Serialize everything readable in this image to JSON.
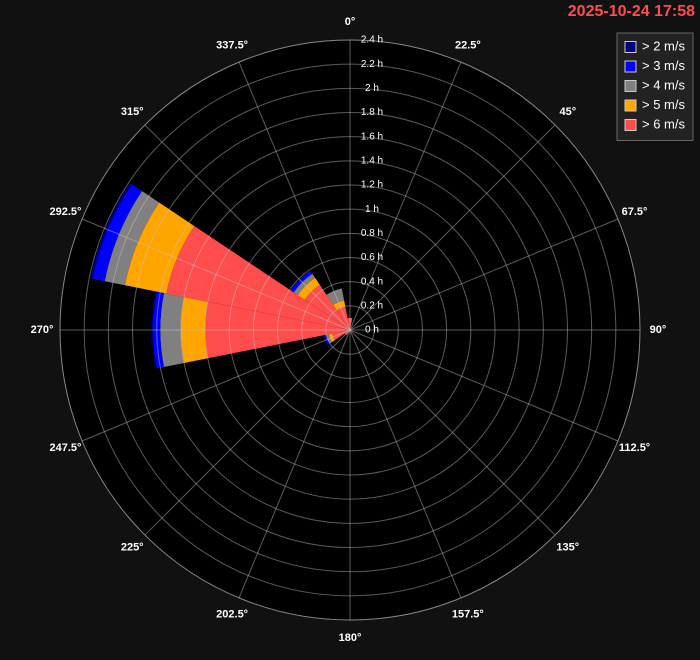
{
  "chart_data": {
    "type": "windrose",
    "timestamp": "2025-10-24 17:58",
    "categories": [
      "0°",
      "22.5°",
      "45°",
      "67.5°",
      "90°",
      "112.5°",
      "135°",
      "157.5°",
      "180°",
      "202.5°",
      "225°",
      "247.5°",
      "270°",
      "292.5°",
      "315°",
      "337.5°"
    ],
    "series": [
      {
        "name": "> 2 m/s",
        "color": "#000080",
        "values": [
          0,
          0,
          0,
          0,
          0,
          0,
          0,
          0,
          0,
          0,
          0,
          0,
          0.01,
          0.02,
          0,
          0
        ]
      },
      {
        "name": "> 3 m/s",
        "color": "#0000ff",
        "values": [
          0,
          0,
          0,
          0,
          0,
          0,
          0,
          0,
          0,
          0,
          0,
          0.02,
          0.06,
          0.1,
          0.03,
          0
        ]
      },
      {
        "name": "> 4 m/s",
        "color": "#808080",
        "values": [
          0,
          0,
          0,
          0,
          0,
          0,
          0,
          0,
          0,
          0,
          0,
          0.02,
          0.17,
          0.17,
          0.04,
          0.1
        ]
      },
      {
        "name": "> 5 m/s",
        "color": "#ffa500",
        "values": [
          0,
          0,
          0,
          0,
          0,
          0,
          0,
          0,
          0,
          0,
          0,
          0.03,
          0.2,
          0.35,
          0.07,
          0.05
        ]
      },
      {
        "name": "> 6 m/s",
        "color": "#ff4c4c",
        "values": [
          0.1,
          0,
          0,
          0,
          0,
          0,
          0,
          0,
          0,
          0,
          0.05,
          0.15,
          1.2,
          1.55,
          0.45,
          0.2
        ]
      }
    ],
    "rlim": [
      0,
      2.4
    ],
    "rticks": [
      {
        "value": 0,
        "label": "0 h"
      },
      {
        "value": 0.2,
        "label": "0.2 h"
      },
      {
        "value": 0.4,
        "label": "0.4 h"
      },
      {
        "value": 0.6,
        "label": "0.6 h"
      },
      {
        "value": 0.8,
        "label": "0.8 h"
      },
      {
        "value": 1,
        "label": "1 h"
      },
      {
        "value": 1.2,
        "label": "1.2 h"
      },
      {
        "value": 1.4,
        "label": "1.4 h"
      },
      {
        "value": 1.6,
        "label": "1.6 h"
      },
      {
        "value": 1.8,
        "label": "1.8 h"
      },
      {
        "value": 2,
        "label": "2 h"
      },
      {
        "value": 2.2,
        "label": "2.2 h"
      },
      {
        "value": 2.4,
        "label": "2.4 h"
      }
    ],
    "grid": true,
    "legend": "top-right"
  }
}
